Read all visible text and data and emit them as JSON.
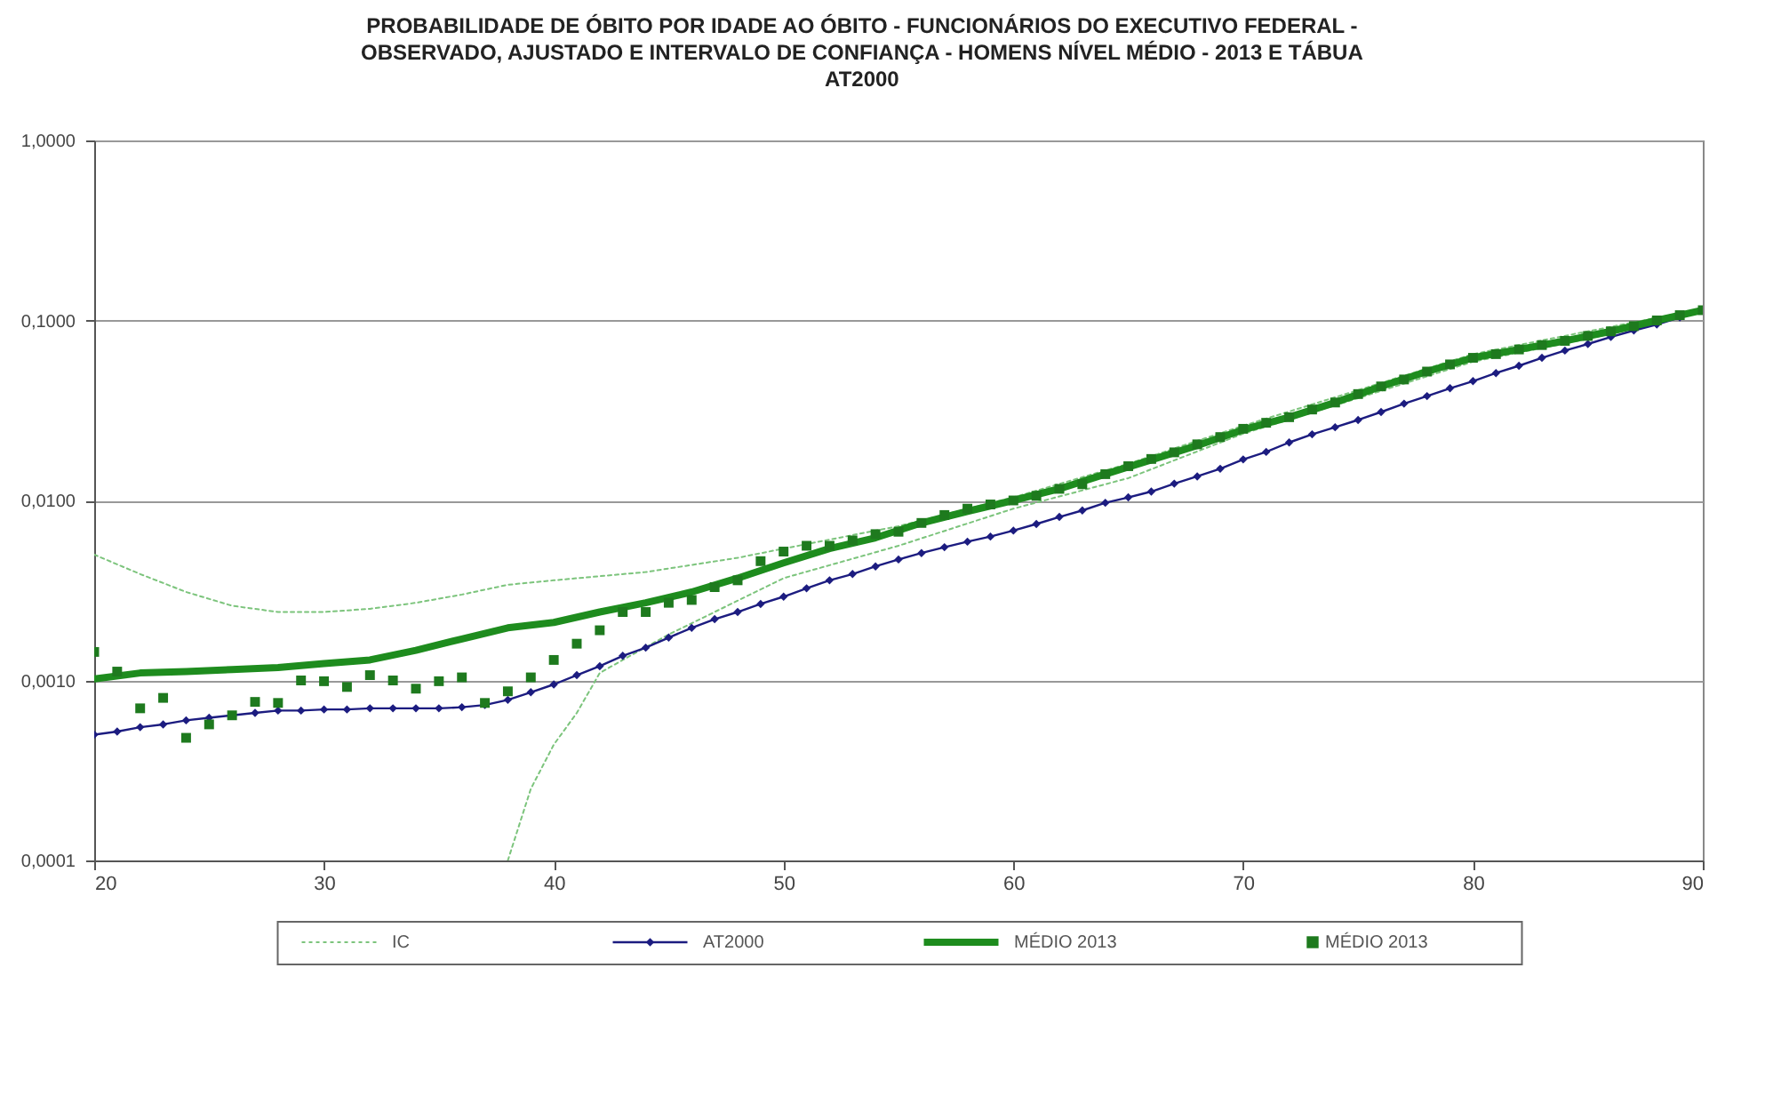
{
  "chart_data": {
    "type": "line",
    "title": "PROBABILIDADE DE ÓBITO POR IDADE AO ÓBITO - FUNCIONÁRIOS DO EXECUTIVO FEDERAL -\nOBSERVADO, AJUSTADO E INTERVALO DE CONFIANÇA - HOMENS NÍVEL MÉDIO - 2013 E TÁBUA\nAT2000",
    "log": "y",
    "grid": "y",
    "legend": "bottom",
    "xlim": [
      20,
      90
    ],
    "xticks": [
      20,
      30,
      40,
      50,
      60,
      70,
      80,
      90
    ],
    "ylim": [
      0.0001,
      1
    ],
    "yticks": [
      {
        "value": 1,
        "label": "1,0000"
      },
      {
        "value": 0.1,
        "label": "0,1000"
      },
      {
        "value": 0.01,
        "label": "0,0100"
      },
      {
        "value": 0.001,
        "label": "0,0010"
      },
      {
        "value": 0.0001,
        "label": "0,0001"
      }
    ],
    "series": [
      {
        "name": "IC",
        "line_style": "dotted",
        "marker": "none",
        "color": "#7cc47c",
        "x": [
          20,
          22,
          24,
          26,
          28,
          30,
          32,
          34,
          36,
          38,
          40,
          44,
          48,
          50,
          55,
          60,
          65,
          70,
          75,
          80,
          85,
          90
        ],
        "values": [
          0.005,
          0.0039,
          0.0031,
          0.0026,
          0.0024,
          0.0024,
          0.0025,
          0.0027,
          0.003,
          0.0034,
          0.0036,
          0.004,
          0.0048,
          0.0054,
          0.0072,
          0.0104,
          0.016,
          0.026,
          0.041,
          0.065,
          0.087,
          0.116
        ]
      },
      {
        "line_style": "dotted",
        "marker": "none",
        "color": "#7cc47c",
        "x": [
          38,
          39,
          40,
          41,
          42,
          43,
          45,
          50,
          55,
          60,
          65,
          70,
          75,
          80,
          85,
          90
        ],
        "values": [
          0.0001,
          0.00025,
          0.00044,
          0.00066,
          0.0011,
          0.0013,
          0.0018,
          0.0037,
          0.0056,
          0.009,
          0.0133,
          0.0235,
          0.037,
          0.059,
          0.079,
          0.112
        ]
      },
      {
        "name": "AT2000",
        "line_style": "solid",
        "marker": "diamond",
        "color": "#1c1c80",
        "x": [
          20,
          21,
          22,
          23,
          24,
          25,
          26,
          27,
          28,
          29,
          30,
          31,
          32,
          33,
          34,
          35,
          36,
          37,
          38,
          39,
          40,
          41,
          42,
          43,
          44,
          45,
          46,
          47,
          48,
          49,
          50,
          51,
          52,
          53,
          54,
          55,
          56,
          57,
          58,
          59,
          60,
          61,
          62,
          63,
          64,
          65,
          66,
          67,
          68,
          69,
          70,
          71,
          72,
          73,
          74,
          75,
          76,
          77,
          78,
          79,
          80,
          81,
          82,
          83,
          84,
          85,
          86,
          87,
          88,
          89,
          90
        ],
        "values": [
          0.0005,
          0.00052,
          0.00055,
          0.00057,
          0.0006,
          0.00062,
          0.00064,
          0.00066,
          0.00068,
          0.00068,
          0.00069,
          0.00069,
          0.0007,
          0.0007,
          0.0007,
          0.0007,
          0.00071,
          0.00073,
          0.00078,
          0.00086,
          0.00095,
          0.00107,
          0.0012,
          0.00137,
          0.00152,
          0.00173,
          0.00196,
          0.00219,
          0.0024,
          0.00266,
          0.00292,
          0.00325,
          0.0036,
          0.0039,
          0.0043,
          0.0047,
          0.0051,
          0.0055,
          0.0059,
          0.0063,
          0.0068,
          0.0074,
          0.0081,
          0.0088,
          0.0097,
          0.0104,
          0.0112,
          0.0124,
          0.0136,
          0.015,
          0.0169,
          0.0186,
          0.021,
          0.0233,
          0.0255,
          0.028,
          0.031,
          0.0345,
          0.038,
          0.042,
          0.046,
          0.051,
          0.056,
          0.062,
          0.068,
          0.074,
          0.081,
          0.088,
          0.095,
          0.104,
          0.114
        ]
      },
      {
        "name": "MÉDIO 2013",
        "line_style": "solid",
        "marker": "none",
        "color": "#1e8c1e",
        "x": [
          20,
          22,
          24,
          26,
          28,
          30,
          32,
          34,
          36,
          38,
          40,
          42,
          44,
          46,
          48,
          50,
          52,
          54,
          56,
          58,
          60,
          62,
          64,
          66,
          68,
          70,
          72,
          74,
          76,
          78,
          80,
          82,
          84,
          86,
          88,
          90
        ],
        "values": [
          0.00102,
          0.0011,
          0.00112,
          0.00115,
          0.00118,
          0.00124,
          0.0013,
          0.00147,
          0.0017,
          0.00196,
          0.0021,
          0.0024,
          0.0027,
          0.0031,
          0.0037,
          0.0045,
          0.0054,
          0.0062,
          0.0075,
          0.0087,
          0.01,
          0.0116,
          0.014,
          0.0168,
          0.0202,
          0.0247,
          0.029,
          0.035,
          0.043,
          0.052,
          0.062,
          0.069,
          0.077,
          0.087,
          0.1,
          0.114
        ]
      },
      {
        "name": "MÉDIO 2013",
        "type": "scatter",
        "marker": "square",
        "color": "#1e7a1e",
        "x": [
          20,
          21,
          22,
          23,
          24,
          25,
          26,
          27,
          28,
          29,
          30,
          31,
          32,
          33,
          34,
          35,
          36,
          37,
          38,
          39,
          40,
          41,
          42,
          43,
          44,
          45,
          46,
          47,
          48,
          49,
          50,
          51,
          52,
          53,
          54,
          55,
          56,
          57,
          58,
          59,
          60,
          61,
          62,
          63,
          64,
          65,
          66,
          67,
          68,
          69,
          70,
          71,
          72,
          73,
          74,
          75,
          76,
          77,
          78,
          79,
          80,
          81,
          82,
          83,
          84,
          85,
          86,
          87,
          88,
          89,
          90
        ],
        "values": [
          0.00144,
          0.00112,
          0.0007,
          0.0008,
          0.00048,
          0.00057,
          0.00064,
          0.00076,
          0.00075,
          0.001,
          0.00099,
          0.00092,
          0.00107,
          0.001,
          0.0009,
          0.00099,
          0.00104,
          0.00075,
          0.00087,
          0.00104,
          0.0013,
          0.0016,
          0.0019,
          0.0024,
          0.0024,
          0.0027,
          0.0028,
          0.0033,
          0.0036,
          0.0046,
          0.0052,
          0.0056,
          0.0056,
          0.006,
          0.0065,
          0.0067,
          0.0075,
          0.0083,
          0.009,
          0.0095,
          0.01,
          0.0106,
          0.0116,
          0.0123,
          0.014,
          0.0155,
          0.017,
          0.0185,
          0.0205,
          0.0225,
          0.025,
          0.027,
          0.029,
          0.032,
          0.035,
          0.039,
          0.043,
          0.047,
          0.052,
          0.057,
          0.062,
          0.065,
          0.069,
          0.073,
          0.077,
          0.082,
          0.087,
          0.093,
          0.1,
          0.107,
          0.114
        ]
      }
    ]
  }
}
